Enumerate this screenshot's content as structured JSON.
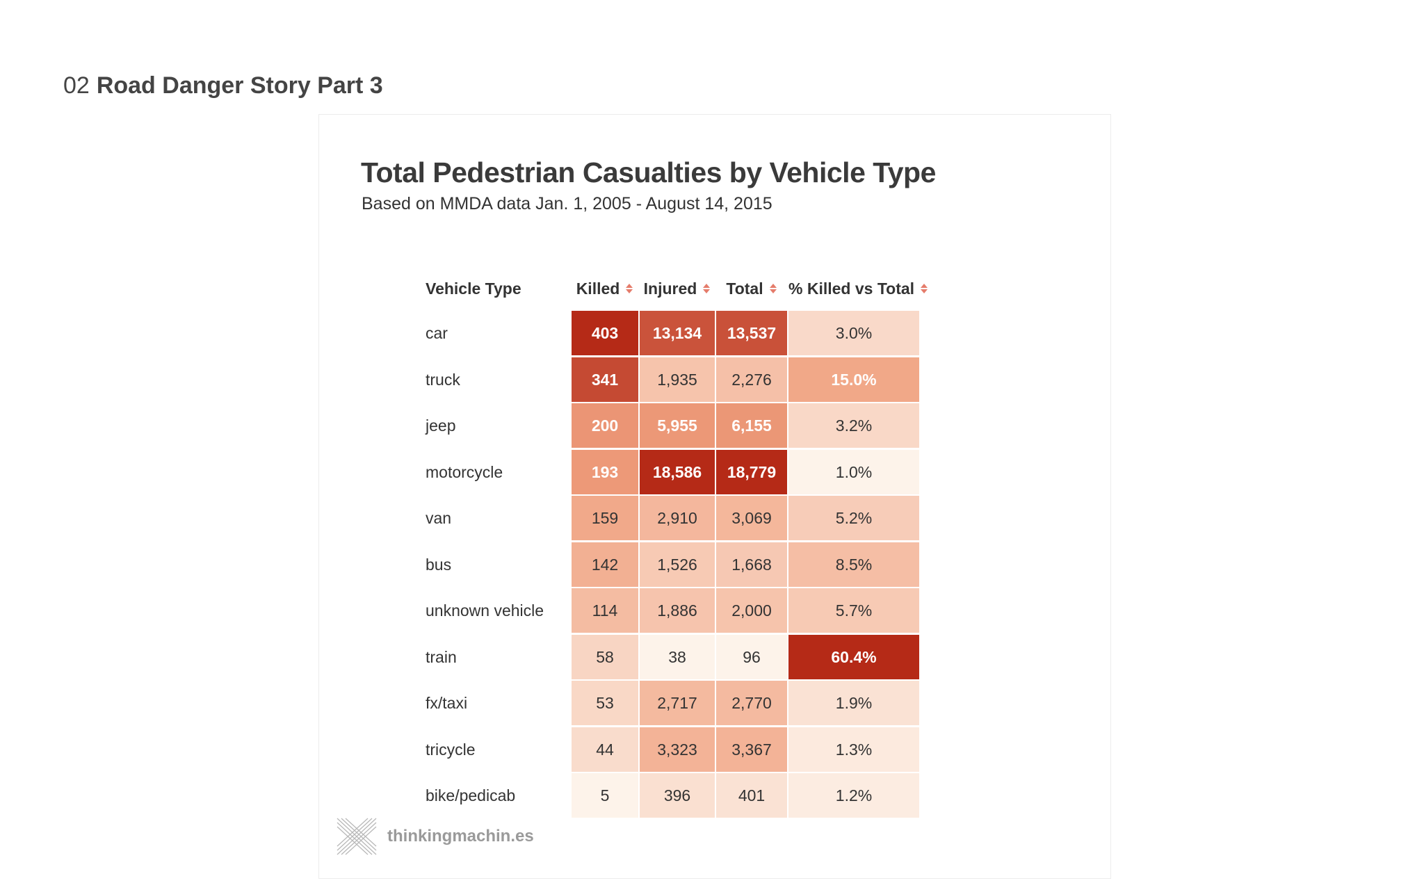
{
  "page": {
    "number": "02",
    "title": "Road Danger Story Part 3"
  },
  "branding": {
    "logo_text": "thinkingmachin.es"
  },
  "chart_data": {
    "type": "table",
    "title": "Total Pedestrian Casualties by Vehicle Type",
    "subtitle": "Based on MMDA data Jan. 1, 2005 - August 14, 2015",
    "columns": [
      "Vehicle Type",
      "Killed",
      "Injured",
      "Total",
      "% Killed vs Total"
    ],
    "sortable_columns": [
      "Killed",
      "Injured",
      "Total",
      "% Killed vs Total"
    ],
    "rows": [
      {
        "vehicle": "car",
        "killed": "403",
        "injured": "13,134",
        "total": "13,537",
        "pct": "3.0%"
      },
      {
        "vehicle": "truck",
        "killed": "341",
        "injured": "1,935",
        "total": "2,276",
        "pct": "15.0%"
      },
      {
        "vehicle": "jeep",
        "killed": "200",
        "injured": "5,955",
        "total": "6,155",
        "pct": "3.2%"
      },
      {
        "vehicle": "motorcycle",
        "killed": "193",
        "injured": "18,586",
        "total": "18,779",
        "pct": "1.0%"
      },
      {
        "vehicle": "van",
        "killed": "159",
        "injured": "2,910",
        "total": "3,069",
        "pct": "5.2%"
      },
      {
        "vehicle": "bus",
        "killed": "142",
        "injured": "1,526",
        "total": "1,668",
        "pct": "8.5%"
      },
      {
        "vehicle": "unknown vehicle",
        "killed": "114",
        "injured": "1,886",
        "total": "2,000",
        "pct": "5.7%"
      },
      {
        "vehicle": "train",
        "killed": "58",
        "injured": "38",
        "total": "96",
        "pct": "60.4%"
      },
      {
        "vehicle": "fx/taxi",
        "killed": "53",
        "injured": "2,717",
        "total": "2,770",
        "pct": "1.9%"
      },
      {
        "vehicle": "tricycle",
        "killed": "44",
        "injured": "3,323",
        "total": "3,367",
        "pct": "1.3%"
      },
      {
        "vehicle": "bike/pedicab",
        "killed": "5",
        "injured": "396",
        "total": "401",
        "pct": "1.2%"
      }
    ],
    "color_scale": {
      "low": "#fdf3ea",
      "high": "#b52a17",
      "text_light": "#ffffff",
      "text_dark": "#333333",
      "sort_icon": "#e57c6b"
    }
  }
}
